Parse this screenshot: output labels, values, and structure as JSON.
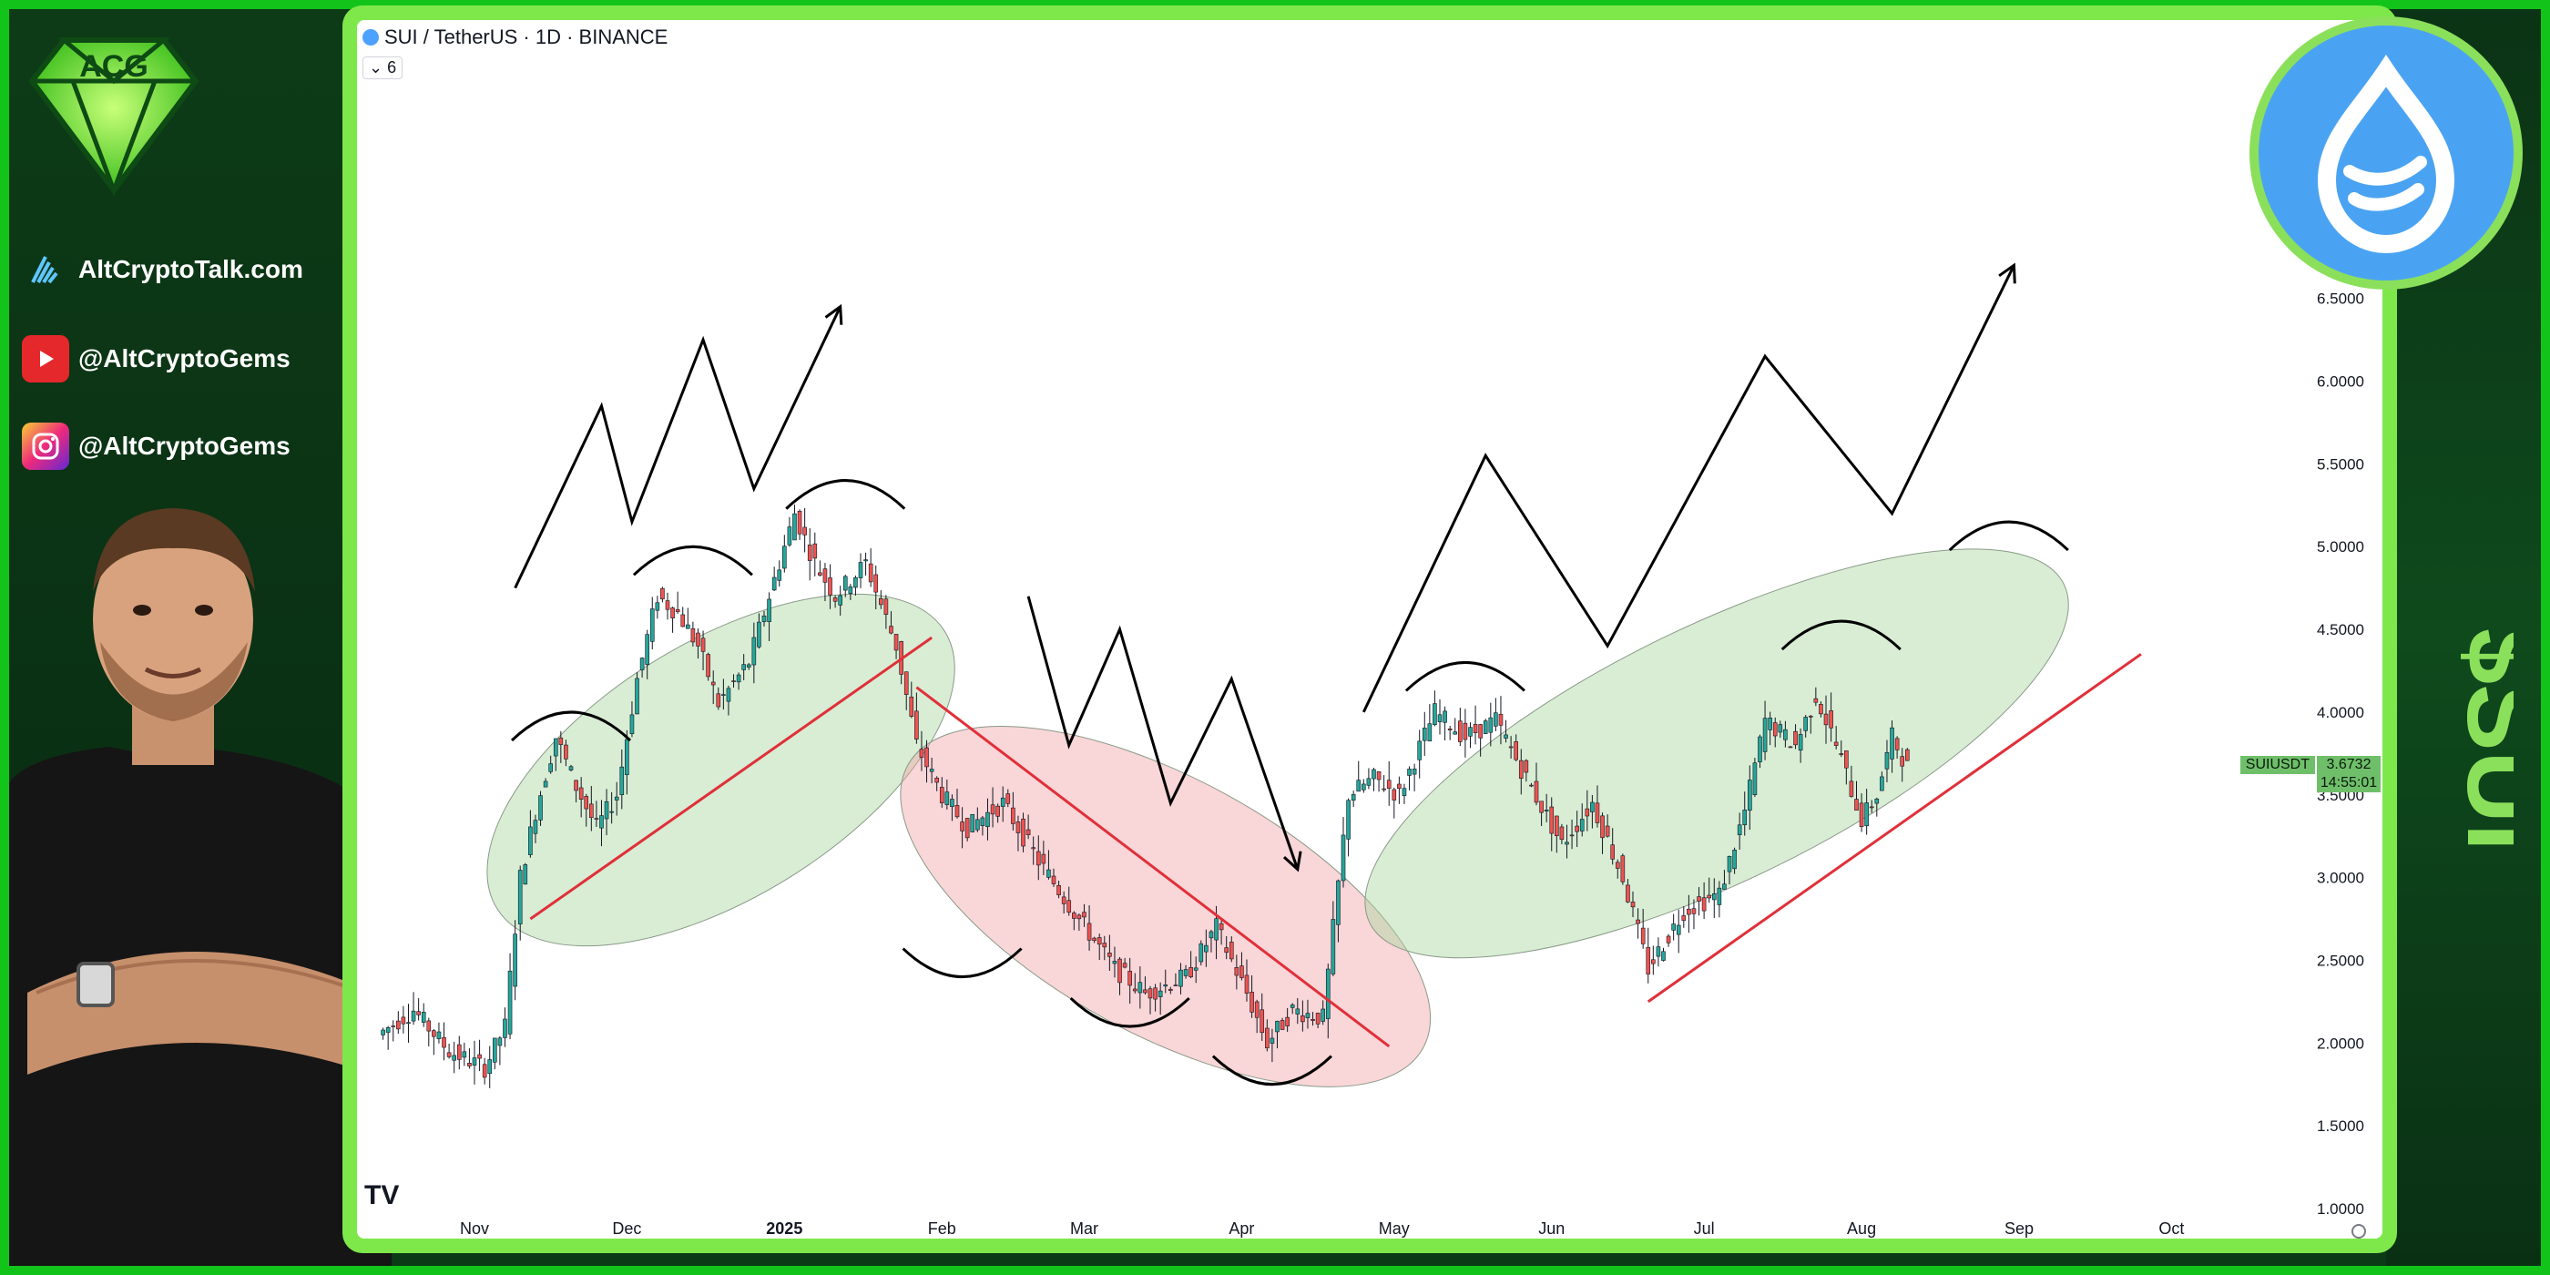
{
  "page": {
    "site": "AltCryptoTalk.com",
    "youtube": "@AltCryptoGems",
    "instagram": "@AltCryptoGems",
    "ticker_vertical": "$SUI",
    "logo_icon": "diamond-acg-logo-icon",
    "coin_icon": "sui-drop-icon"
  },
  "chart_data": {
    "type": "line",
    "title": "SUI / TetherUS · 1D · BINANCE",
    "indicator_count": "6",
    "symbol": "SUIUSDT",
    "last_price": "3.6732",
    "countdown": "14:55:01",
    "y_ticks": [
      "6.5000",
      "6.0000",
      "5.5000",
      "5.0000",
      "4.5000",
      "4.0000",
      "3.5000",
      "3.0000",
      "2.5000",
      "2.0000",
      "1.5000",
      "1.0000"
    ],
    "x_ticks": [
      "Nov",
      "Dec",
      "2025",
      "Feb",
      "Mar",
      "Apr",
      "May",
      "Jun",
      "Jul",
      "Aug",
      "Sep",
      "Oct"
    ],
    "ylim": [
      1.0,
      6.5
    ],
    "grid": false,
    "price_path": [
      {
        "t": "2024-10-14",
        "v": 2.05
      },
      {
        "t": "2024-10-21",
        "v": 2.2
      },
      {
        "t": "2024-10-28",
        "v": 1.95
      },
      {
        "t": "2024-11-04",
        "v": 1.85
      },
      {
        "t": "2024-11-08",
        "v": 2.1
      },
      {
        "t": "2024-11-11",
        "v": 3.0
      },
      {
        "t": "2024-11-14",
        "v": 3.4
      },
      {
        "t": "2024-11-18",
        "v": 3.85
      },
      {
        "t": "2024-11-22",
        "v": 3.55
      },
      {
        "t": "2024-11-26",
        "v": 3.3
      },
      {
        "t": "2024-11-30",
        "v": 3.5
      },
      {
        "t": "2024-12-04",
        "v": 4.2
      },
      {
        "t": "2024-12-08",
        "v": 4.7
      },
      {
        "t": "2024-12-12",
        "v": 4.6
      },
      {
        "t": "2024-12-16",
        "v": 4.4
      },
      {
        "t": "2024-12-20",
        "v": 4.05
      },
      {
        "t": "2024-12-26",
        "v": 4.3
      },
      {
        "t": "2025-01-04",
        "v": 5.2
      },
      {
        "t": "2025-01-08",
        "v": 4.9
      },
      {
        "t": "2025-01-12",
        "v": 4.7
      },
      {
        "t": "2025-01-18",
        "v": 4.9
      },
      {
        "t": "2025-01-24",
        "v": 4.4
      },
      {
        "t": "2025-01-28",
        "v": 3.8
      },
      {
        "t": "2025-02-02",
        "v": 3.5
      },
      {
        "t": "2025-02-07",
        "v": 3.3
      },
      {
        "t": "2025-02-14",
        "v": 3.45
      },
      {
        "t": "2025-02-21",
        "v": 3.1
      },
      {
        "t": "2025-03-01",
        "v": 2.75
      },
      {
        "t": "2025-03-08",
        "v": 2.45
      },
      {
        "t": "2025-03-14",
        "v": 2.3
      },
      {
        "t": "2025-03-22",
        "v": 2.4
      },
      {
        "t": "2025-03-28",
        "v": 2.7
      },
      {
        "t": "2025-04-03",
        "v": 2.3
      },
      {
        "t": "2025-04-07",
        "v": 2.0
      },
      {
        "t": "2025-04-12",
        "v": 2.2
      },
      {
        "t": "2025-04-18",
        "v": 2.15
      },
      {
        "t": "2025-04-23",
        "v": 3.5
      },
      {
        "t": "2025-04-28",
        "v": 3.6
      },
      {
        "t": "2025-05-03",
        "v": 3.5
      },
      {
        "t": "2025-05-10",
        "v": 4.0
      },
      {
        "t": "2025-05-16",
        "v": 3.85
      },
      {
        "t": "2025-05-22",
        "v": 3.95
      },
      {
        "t": "2025-05-28",
        "v": 3.6
      },
      {
        "t": "2025-06-04",
        "v": 3.2
      },
      {
        "t": "2025-06-10",
        "v": 3.45
      },
      {
        "t": "2025-06-16",
        "v": 3.0
      },
      {
        "t": "2025-06-21",
        "v": 2.45
      },
      {
        "t": "2025-06-28",
        "v": 2.8
      },
      {
        "t": "2025-07-05",
        "v": 2.9
      },
      {
        "t": "2025-07-10",
        "v": 3.4
      },
      {
        "t": "2025-07-14",
        "v": 3.95
      },
      {
        "t": "2025-07-20",
        "v": 3.8
      },
      {
        "t": "2025-07-24",
        "v": 4.1
      },
      {
        "t": "2025-07-28",
        "v": 3.8
      },
      {
        "t": "2025-08-02",
        "v": 3.35
      },
      {
        "t": "2025-08-05",
        "v": 3.5
      },
      {
        "t": "2025-08-08",
        "v": 3.85
      },
      {
        "t": "2025-08-11",
        "v": 3.67
      }
    ],
    "trendlines": [
      {
        "color": "#e0303a",
        "from": {
          "t": "2024-11-12",
          "v": 2.75
        },
        "to": {
          "t": "2025-01-30",
          "v": 4.45
        }
      },
      {
        "color": "#e0303a",
        "from": {
          "t": "2025-01-27",
          "v": 4.15
        },
        "to": {
          "t": "2025-04-30",
          "v": 1.98
        }
      },
      {
        "color": "#e0303a",
        "from": {
          "t": "2025-06-20",
          "v": 2.25
        },
        "to": {
          "t": "2025-09-25",
          "v": 4.35
        }
      }
    ],
    "zones": [
      {
        "color": "#a9d8a0",
        "from": {
          "t": "2024-11-10",
          "v": 2.9
        },
        "to": {
          "t": "2025-01-28",
          "v": 4.4
        }
      },
      {
        "color": "#f2a4a8",
        "from": {
          "t": "2025-01-30",
          "v": 3.6
        },
        "to": {
          "t": "2025-05-02",
          "v": 2.05
        }
      },
      {
        "color": "#a9d8a0",
        "from": {
          "t": "2025-05-01",
          "v": 2.8
        },
        "to": {
          "t": "2025-09-05",
          "v": 4.7
        }
      }
    ],
    "projections": [
      [
        {
          "t": "2024-11-09",
          "v": 4.75
        },
        {
          "t": "2024-11-26",
          "v": 5.85
        },
        {
          "t": "2024-12-02",
          "v": 5.15
        },
        {
          "t": "2024-12-16",
          "v": 6.25
        },
        {
          "t": "2024-12-26",
          "v": 5.35
        },
        {
          "t": "2025-01-12",
          "v": 6.45
        }
      ],
      [
        {
          "t": "2025-02-18",
          "v": 4.7
        },
        {
          "t": "2025-02-26",
          "v": 3.8
        },
        {
          "t": "2025-03-08",
          "v": 4.5
        },
        {
          "t": "2025-03-18",
          "v": 3.45
        },
        {
          "t": "2025-03-30",
          "v": 4.2
        },
        {
          "t": "2025-04-12",
          "v": 3.05
        }
      ],
      [
        {
          "t": "2025-04-25",
          "v": 4.0
        },
        {
          "t": "2025-05-19",
          "v": 5.55
        },
        {
          "t": "2025-06-12",
          "v": 4.4
        },
        {
          "t": "2025-07-13",
          "v": 6.15
        },
        {
          "t": "2025-08-07",
          "v": 5.2
        },
        {
          "t": "2025-08-31",
          "v": 6.7
        }
      ]
    ],
    "arcs": [
      {
        "t": "2024-11-20",
        "v": 3.95,
        "dir": "up"
      },
      {
        "t": "2024-12-14",
        "v": 4.95,
        "dir": "up"
      },
      {
        "t": "2025-01-13",
        "v": 5.35,
        "dir": "up"
      },
      {
        "t": "2025-02-05",
        "v": 2.45,
        "dir": "down"
      },
      {
        "t": "2025-03-10",
        "v": 2.15,
        "dir": "down"
      },
      {
        "t": "2025-04-07",
        "v": 1.8,
        "dir": "down"
      },
      {
        "t": "2025-05-15",
        "v": 4.25,
        "dir": "up"
      },
      {
        "t": "2025-07-28",
        "v": 4.5,
        "dir": "up"
      },
      {
        "t": "2025-08-30",
        "v": 5.1,
        "dir": "up"
      }
    ],
    "colors": {
      "up": "#26a69a",
      "down": "#ef5350",
      "drawing": "#000000"
    }
  }
}
